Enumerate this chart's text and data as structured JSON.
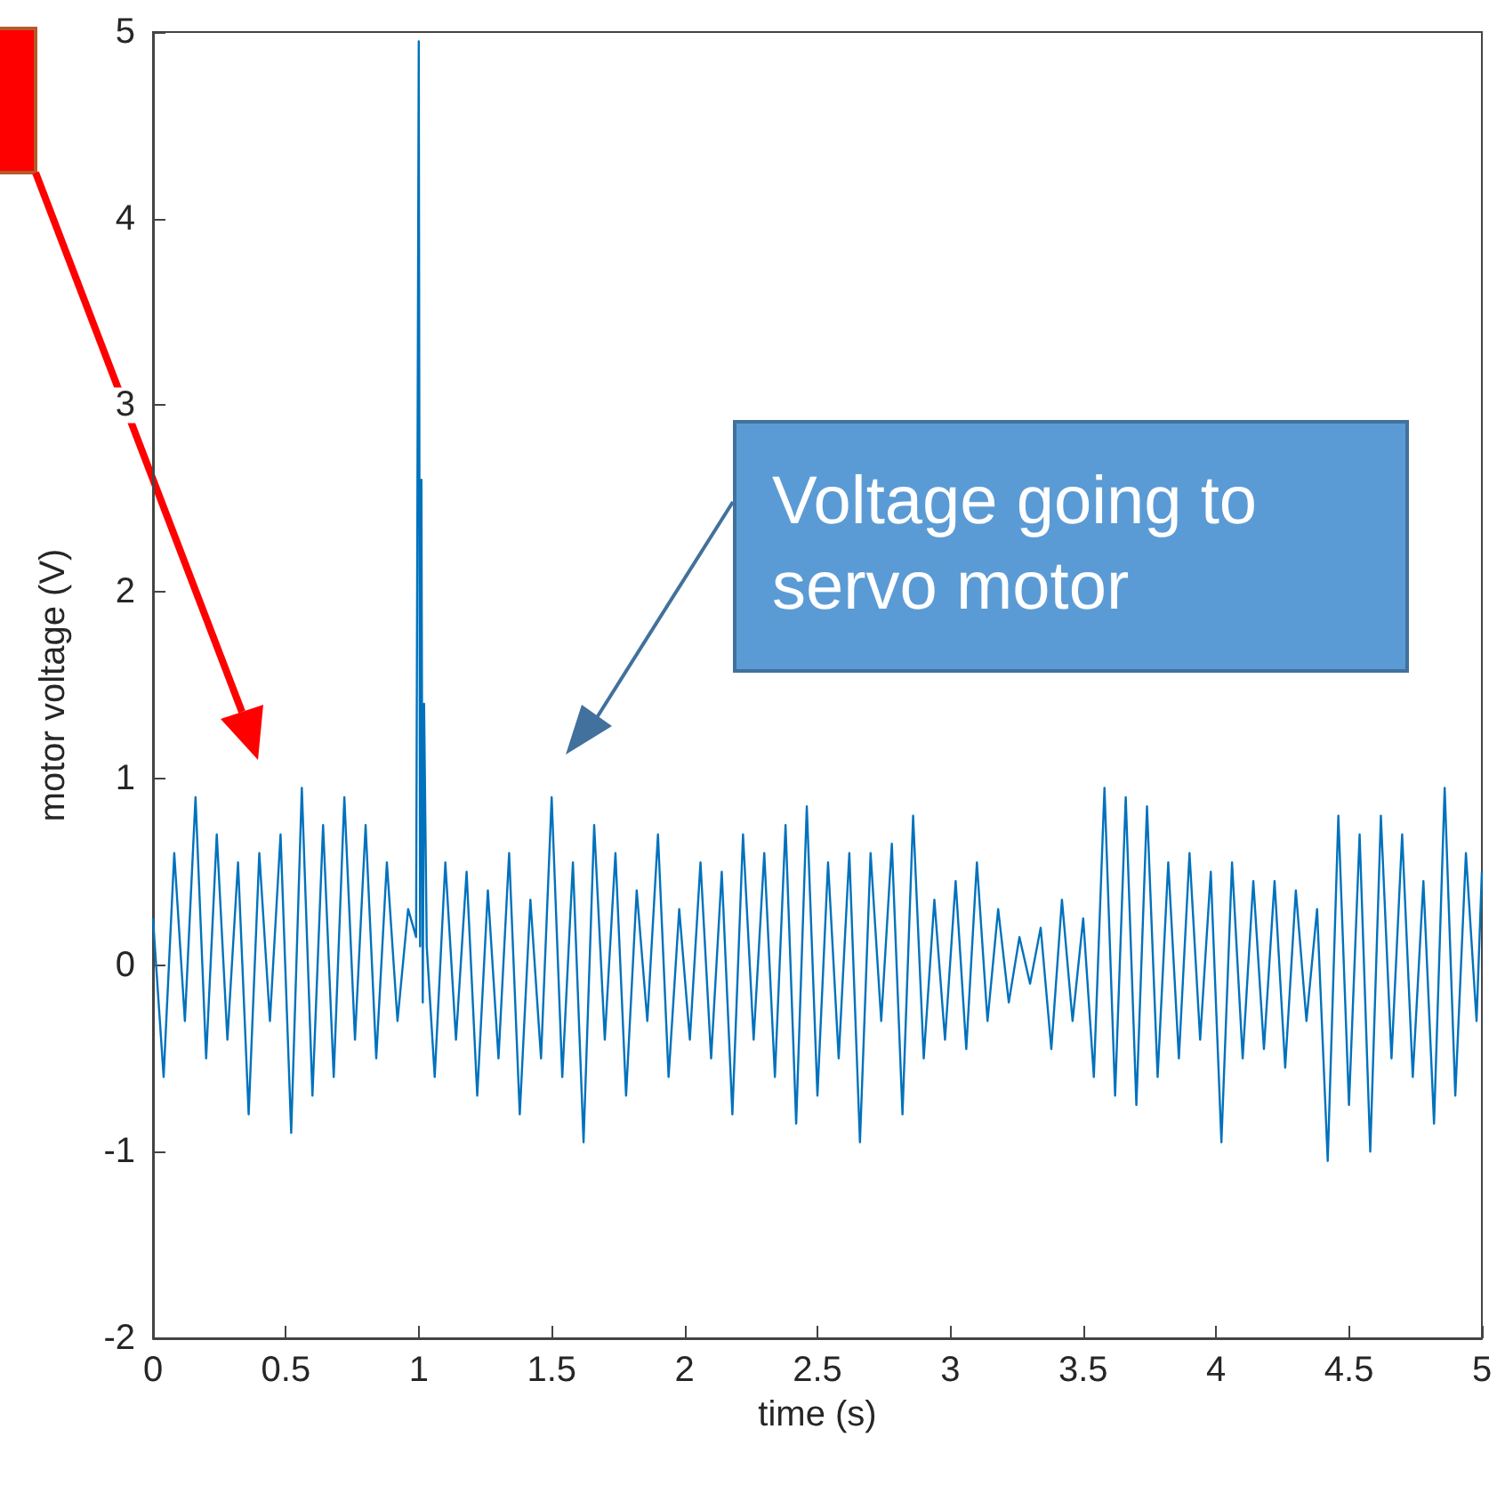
{
  "chart_data": {
    "type": "line",
    "xlabel": "time (s)",
    "ylabel": "motor voltage (V)",
    "annotations": [
      "Voltage going to servo motor"
    ],
    "xlim": [
      0,
      5
    ],
    "xticks": [
      0,
      0.5,
      1,
      1.5,
      2,
      2.5,
      3,
      3.5,
      4,
      4.5,
      5
    ],
    "ylim": [
      -2,
      5
    ],
    "yticks": [
      -2,
      -1,
      0,
      1,
      2,
      3,
      4,
      5
    ],
    "grid": false,
    "marker": "none",
    "line_style": "solid",
    "series": [
      {
        "color": "#0072bd",
        "x": [
          0,
          0.04,
          0.08,
          0.12,
          0.16,
          0.2,
          0.24,
          0.28,
          0.32,
          0.36,
          0.4,
          0.44,
          0.48,
          0.52,
          0.56,
          0.6,
          0.64,
          0.68,
          0.72,
          0.76,
          0.8,
          0.84,
          0.88,
          0.92,
          0.96,
          0.99,
          1.0,
          1.005,
          1.01,
          1.015,
          1.02,
          1.03,
          1.06,
          1.1,
          1.14,
          1.18,
          1.22,
          1.26,
          1.3,
          1.34,
          1.38,
          1.42,
          1.46,
          1.5,
          1.54,
          1.58,
          1.62,
          1.66,
          1.7,
          1.74,
          1.78,
          1.82,
          1.86,
          1.9,
          1.94,
          1.98,
          2.02,
          2.06,
          2.1,
          2.14,
          2.18,
          2.22,
          2.26,
          2.3,
          2.34,
          2.38,
          2.42,
          2.46,
          2.5,
          2.54,
          2.58,
          2.62,
          2.66,
          2.7,
          2.74,
          2.78,
          2.82,
          2.86,
          2.9,
          2.94,
          2.98,
          3.02,
          3.06,
          3.1,
          3.14,
          3.18,
          3.22,
          3.26,
          3.3,
          3.34,
          3.38,
          3.42,
          3.46,
          3.5,
          3.54,
          3.58,
          3.62,
          3.66,
          3.7,
          3.74,
          3.78,
          3.82,
          3.86,
          3.9,
          3.94,
          3.98,
          4.02,
          4.06,
          4.1,
          4.14,
          4.18,
          4.22,
          4.26,
          4.3,
          4.34,
          4.38,
          4.42,
          4.46,
          4.5,
          4.54,
          4.58,
          4.62,
          4.66,
          4.7,
          4.74,
          4.78,
          4.82,
          4.86,
          4.9,
          4.94,
          4.98,
          5.0
        ],
        "values": [
          0.25,
          -0.6,
          0.6,
          -0.3,
          0.9,
          -0.5,
          0.7,
          -0.4,
          0.55,
          -0.8,
          0.6,
          -0.3,
          0.7,
          -0.9,
          0.95,
          -0.7,
          0.75,
          -0.6,
          0.9,
          -0.4,
          0.75,
          -0.5,
          0.55,
          -0.3,
          0.3,
          0.15,
          4.95,
          0.1,
          2.6,
          -0.2,
          1.4,
          0.1,
          -0.6,
          0.55,
          -0.4,
          0.5,
          -0.7,
          0.4,
          -0.5,
          0.6,
          -0.8,
          0.35,
          -0.5,
          0.9,
          -0.6,
          0.55,
          -0.95,
          0.75,
          -0.4,
          0.6,
          -0.7,
          0.4,
          -0.3,
          0.7,
          -0.6,
          0.3,
          -0.4,
          0.55,
          -0.5,
          0.5,
          -0.8,
          0.7,
          -0.4,
          0.6,
          -0.6,
          0.75,
          -0.85,
          0.85,
          -0.7,
          0.55,
          -0.5,
          0.6,
          -0.95,
          0.6,
          -0.3,
          0.65,
          -0.8,
          0.8,
          -0.5,
          0.35,
          -0.4,
          0.45,
          -0.45,
          0.55,
          -0.3,
          0.3,
          -0.2,
          0.15,
          -0.1,
          0.2,
          -0.45,
          0.35,
          -0.3,
          0.25,
          -0.6,
          0.95,
          -0.7,
          0.9,
          -0.75,
          0.85,
          -0.6,
          0.55,
          -0.5,
          0.6,
          -0.4,
          0.5,
          -0.95,
          0.55,
          -0.5,
          0.45,
          -0.45,
          0.45,
          -0.55,
          0.4,
          -0.3,
          0.3,
          -1.05,
          0.8,
          -0.75,
          0.7,
          -1.0,
          0.8,
          -0.5,
          0.7,
          -0.6,
          0.45,
          -0.85,
          0.95,
          -0.7,
          0.6,
          -0.3,
          0.5
        ]
      }
    ]
  }
}
